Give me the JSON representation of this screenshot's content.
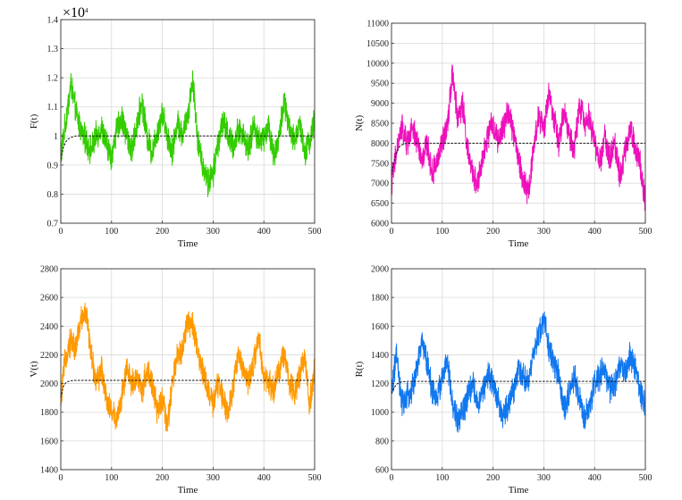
{
  "chart_data": [
    {
      "type": "line",
      "id": "F",
      "xlabel": "Time",
      "ylabel": "F(t)",
      "y_multiplier": "×10",
      "y_multiplier_exp": "4",
      "xlim": [
        0,
        500
      ],
      "ylim": [
        0.7,
        1.4
      ],
      "xticks": [
        0,
        100,
        200,
        300,
        400,
        500
      ],
      "yticks": [
        0.7,
        0.8,
        0.9,
        1,
        1.1,
        1.2,
        1.3,
        1.4
      ],
      "ytick_labels": [
        "0.7",
        "0.8",
        "0.9",
        "1",
        "1.1",
        "1.2",
        "1.3",
        "1.4"
      ],
      "grid": true,
      "series": [
        {
          "color": "#33cc00",
          "style": "stochastic",
          "x": [
            0,
            10,
            20,
            30,
            40,
            50,
            60,
            70,
            80,
            90,
            100,
            110,
            120,
            130,
            140,
            150,
            160,
            170,
            180,
            190,
            200,
            210,
            220,
            230,
            240,
            250,
            260,
            270,
            280,
            290,
            300,
            310,
            320,
            330,
            340,
            350,
            360,
            370,
            380,
            390,
            400,
            410,
            420,
            430,
            440,
            450,
            460,
            470,
            480,
            490,
            500
          ],
          "y": [
            0.93,
            1.05,
            1.18,
            1.08,
            1.02,
            0.98,
            0.95,
            1.0,
            1.03,
            0.97,
            0.93,
            1.02,
            1.06,
            1.0,
            0.95,
            1.04,
            1.12,
            1.0,
            0.94,
            1.02,
            1.08,
            1.0,
            0.95,
            1.05,
            1.0,
            1.07,
            1.2,
            0.98,
            0.9,
            0.84,
            0.87,
            0.98,
            1.05,
            1.0,
            0.96,
            1.03,
            1.0,
            0.95,
            1.04,
            0.98,
            1.0,
            1.03,
            0.93,
            1.0,
            1.12,
            1.02,
            0.98,
            1.05,
            0.95,
            0.98,
            1.05
          ]
        },
        {
          "color": "#111111",
          "style": "mean",
          "x": [
            0,
            5,
            10,
            15,
            20,
            30,
            40,
            60,
            100,
            200,
            300,
            400,
            500
          ],
          "y": [
            0.92,
            0.96,
            0.98,
            0.99,
            0.995,
            1.0,
            1.0,
            1.0,
            1.0,
            1.0,
            1.0,
            1.0,
            1.0
          ]
        }
      ]
    },
    {
      "type": "line",
      "id": "N",
      "xlabel": "Time",
      "ylabel": "N(t)",
      "xlim": [
        0,
        500
      ],
      "ylim": [
        6000,
        11000
      ],
      "xticks": [
        0,
        100,
        200,
        300,
        400,
        500
      ],
      "yticks": [
        6000,
        6500,
        7000,
        7500,
        8000,
        8500,
        9000,
        9500,
        10000,
        10500,
        11000
      ],
      "ytick_labels": [
        "6000",
        "6500",
        "7000",
        "7500",
        "8000",
        "8500",
        "9000",
        "9500",
        "10000",
        "10500",
        "11000"
      ],
      "grid": true,
      "series": [
        {
          "color": "#ee11bb",
          "style": "stochastic",
          "x": [
            0,
            10,
            20,
            30,
            40,
            50,
            60,
            70,
            80,
            90,
            100,
            110,
            120,
            130,
            140,
            150,
            160,
            170,
            180,
            190,
            200,
            210,
            220,
            230,
            240,
            250,
            260,
            270,
            280,
            290,
            300,
            310,
            320,
            330,
            340,
            350,
            360,
            370,
            380,
            390,
            400,
            410,
            420,
            430,
            440,
            450,
            460,
            470,
            480,
            490,
            500
          ],
          "y": [
            7000,
            7800,
            8400,
            8000,
            8300,
            8100,
            7500,
            8000,
            7200,
            7600,
            8000,
            8500,
            9800,
            8600,
            9000,
            7800,
            7200,
            7000,
            7600,
            8200,
            8500,
            8000,
            8400,
            8800,
            8300,
            7600,
            7000,
            6800,
            7900,
            8700,
            8300,
            9300,
            8600,
            8000,
            8800,
            8200,
            7800,
            9000,
            8500,
            8700,
            8000,
            7500,
            8200,
            7600,
            8000,
            7200,
            7800,
            8400,
            7900,
            7500,
            6500
          ]
        },
        {
          "color": "#111111",
          "style": "mean",
          "x": [
            0,
            5,
            10,
            15,
            20,
            30,
            40,
            60,
            100,
            200,
            300,
            400,
            500
          ],
          "y": [
            7200,
            7550,
            7780,
            7900,
            7960,
            8000,
            8000,
            8000,
            8000,
            8000,
            8000,
            8000,
            8000
          ]
        }
      ]
    },
    {
      "type": "line",
      "id": "V",
      "xlabel": "Time",
      "ylabel": "V(t)",
      "xlim": [
        0,
        500
      ],
      "ylim": [
        1400,
        2800
      ],
      "xticks": [
        0,
        100,
        200,
        300,
        400,
        500
      ],
      "yticks": [
        1400,
        1600,
        1800,
        2000,
        2200,
        2400,
        2600,
        2800
      ],
      "ytick_labels": [
        "1400",
        "1600",
        "1800",
        "2000",
        "2200",
        "2400",
        "2600",
        "2800"
      ],
      "grid": true,
      "series": [
        {
          "color": "#ff9900",
          "style": "stochastic",
          "x": [
            0,
            10,
            20,
            30,
            40,
            50,
            60,
            70,
            80,
            90,
            100,
            110,
            120,
            130,
            140,
            150,
            160,
            170,
            180,
            190,
            200,
            210,
            220,
            230,
            240,
            250,
            260,
            270,
            280,
            290,
            300,
            310,
            320,
            330,
            340,
            350,
            360,
            370,
            380,
            390,
            400,
            410,
            420,
            430,
            440,
            450,
            460,
            470,
            480,
            490,
            500
          ],
          "y": [
            1900,
            2200,
            2300,
            2250,
            2450,
            2500,
            2200,
            2000,
            2100,
            1900,
            1800,
            1750,
            1900,
            2100,
            2000,
            2050,
            1950,
            2100,
            2000,
            1800,
            1900,
            1700,
            2000,
            2200,
            2250,
            2450,
            2400,
            2200,
            2100,
            1950,
            1850,
            2000,
            1900,
            1800,
            2000,
            2200,
            2100,
            2000,
            2150,
            2300,
            2050,
            2000,
            1950,
            2100,
            2200,
            2000,
            1950,
            2050,
            2200,
            1850,
            2100
          ]
        },
        {
          "color": "#111111",
          "style": "mean",
          "x": [
            0,
            5,
            10,
            15,
            20,
            30,
            40,
            60,
            100,
            200,
            300,
            400,
            500
          ],
          "y": [
            1900,
            1980,
            2005,
            2015,
            2020,
            2022,
            2022,
            2022,
            2022,
            2022,
            2022,
            2022,
            2022
          ]
        }
      ]
    },
    {
      "type": "line",
      "id": "R",
      "xlabel": "Time",
      "ylabel": "R(t)",
      "xlim": [
        0,
        500
      ],
      "ylim": [
        600,
        2000
      ],
      "xticks": [
        0,
        100,
        200,
        300,
        400,
        500
      ],
      "yticks": [
        600,
        800,
        1000,
        1200,
        1400,
        1600,
        1800,
        2000
      ],
      "ytick_labels": [
        "600",
        "800",
        "1000",
        "1200",
        "1400",
        "1600",
        "1800",
        "2000"
      ],
      "grid": true,
      "series": [
        {
          "color": "#1177ee",
          "style": "stochastic",
          "x": [
            0,
            10,
            20,
            30,
            40,
            50,
            60,
            70,
            80,
            90,
            100,
            110,
            120,
            130,
            140,
            150,
            160,
            170,
            180,
            190,
            200,
            210,
            220,
            230,
            240,
            250,
            260,
            270,
            280,
            290,
            300,
            310,
            320,
            330,
            340,
            350,
            360,
            370,
            380,
            390,
            400,
            410,
            420,
            430,
            440,
            450,
            460,
            470,
            480,
            490,
            500
          ],
          "y": [
            1150,
            1400,
            1050,
            1100,
            1150,
            1300,
            1500,
            1350,
            1150,
            1100,
            1250,
            1350,
            1050,
            950,
            1000,
            1100,
            1200,
            1050,
            1150,
            1250,
            1200,
            1100,
            950,
            1050,
            1150,
            1300,
            1250,
            1200,
            1400,
            1550,
            1650,
            1450,
            1350,
            1250,
            1000,
            1150,
            1250,
            1100,
            950,
            1050,
            1200,
            1250,
            1300,
            1150,
            1200,
            1350,
            1250,
            1400,
            1300,
            1150,
            1050
          ]
        },
        {
          "color": "#111111",
          "style": "mean",
          "x": [
            0,
            5,
            10,
            15,
            20,
            30,
            40,
            60,
            100,
            200,
            300,
            400,
            500
          ],
          "y": [
            1130,
            1170,
            1195,
            1205,
            1212,
            1215,
            1215,
            1215,
            1215,
            1215,
            1215,
            1215,
            1215
          ]
        }
      ]
    }
  ]
}
